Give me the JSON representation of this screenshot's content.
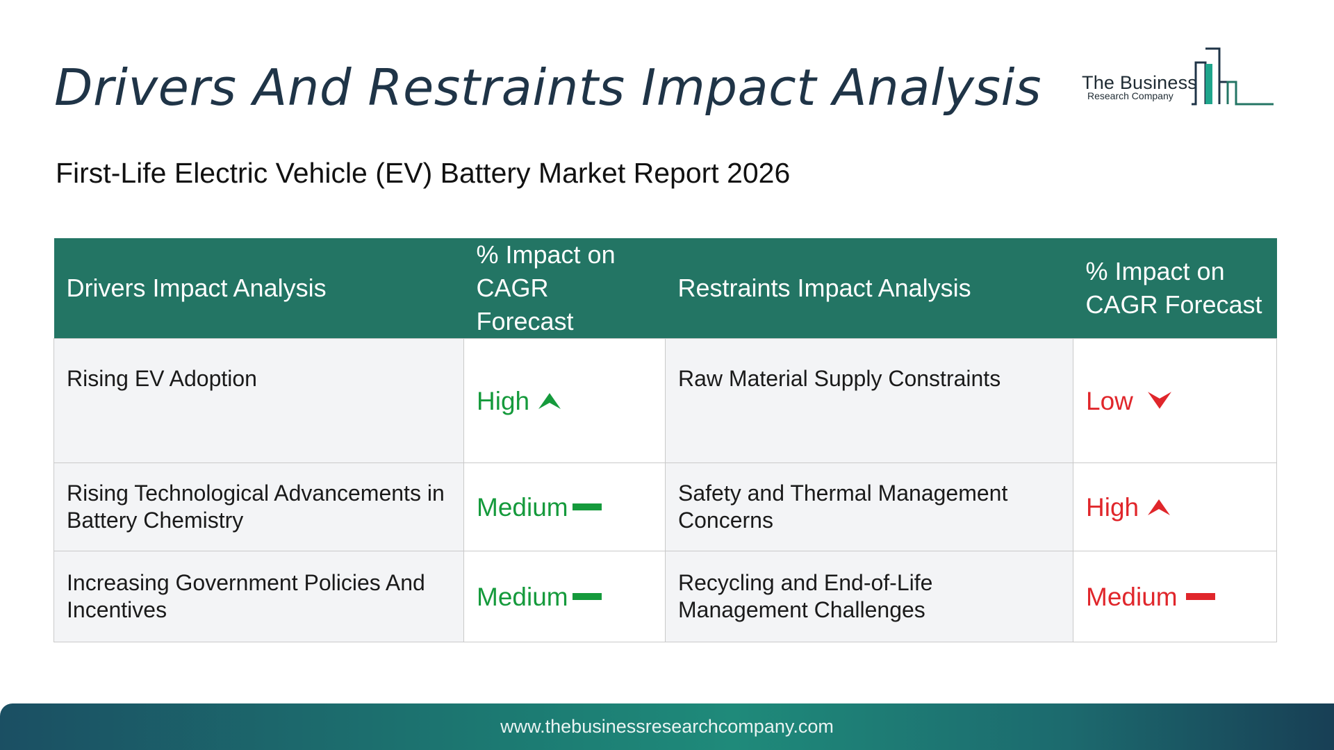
{
  "title": "Drivers And Restraints Impact Analysis",
  "subtitle": "First-Life Electric Vehicle (EV) Battery Market Report 2026",
  "logo": {
    "name": "The Business",
    "sub": "Research Company"
  },
  "table": {
    "headers": {
      "drivers": "Drivers Impact Analysis",
      "drivers_impact_line1": "% Impact on",
      "drivers_impact_line2": "CAGR Forecast",
      "restraints": "Restraints Impact Analysis",
      "restraints_impact_line1": "% Impact on",
      "restraints_impact_line2": "CAGR Forecast"
    },
    "rows": [
      {
        "driver": "Rising EV Adoption",
        "driver_impact": "High",
        "driver_trend": "up",
        "restraint": "Raw Material Supply Constraints",
        "restraint_impact": "Low",
        "restraint_trend": "down"
      },
      {
        "driver": "Rising Technological Advancements in Battery Chemistry",
        "driver_impact": "Medium",
        "driver_trend": "flat",
        "restraint": "Safety and Thermal Management Concerns",
        "restraint_impact": "High",
        "restraint_trend": "up"
      },
      {
        "driver": "Increasing Government Policies And Incentives",
        "driver_impact": "Medium",
        "driver_trend": "flat",
        "restraint": "Recycling and End-of-Life Management Challenges",
        "restraint_impact": "Medium",
        "restraint_trend": "flat"
      }
    ]
  },
  "colors": {
    "header_bg": "#237564",
    "driver_impact": "#159a3c",
    "restraint_impact": "#e0262b",
    "title": "#1f3447"
  },
  "footer": {
    "url": "www.thebusinessresearchcompany.com"
  }
}
